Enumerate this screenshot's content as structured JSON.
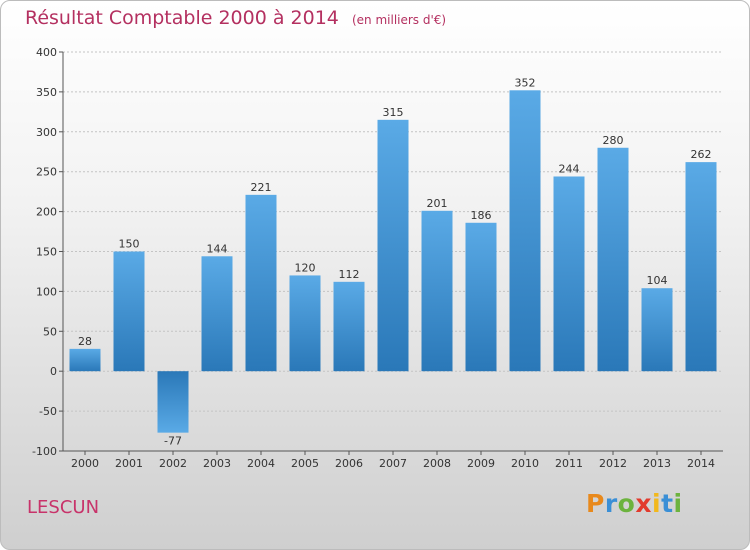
{
  "title": "Résultat Comptable 2000 à 2014",
  "subtitle": "(en milliers d'€)",
  "commune": "LESCUN",
  "logo": {
    "letters": [
      "P",
      "r",
      "o",
      "x",
      "i",
      "t",
      "i"
    ],
    "colors": [
      "#e8891c",
      "#3a8fd6",
      "#6cb33e",
      "#e23a2d",
      "#f2b81c",
      "#3a8fd6",
      "#6cb33e"
    ]
  },
  "colors": {
    "bar_top": "#5aaae6",
    "bar_bottom": "#2a78b8",
    "title": "#b43060"
  },
  "chart_data": {
    "type": "bar",
    "categories": [
      "2000",
      "2001",
      "2002",
      "2003",
      "2004",
      "2005",
      "2006",
      "2007",
      "2008",
      "2009",
      "2010",
      "2011",
      "2012",
      "2013",
      "2014"
    ],
    "values": [
      28,
      150,
      -77,
      144,
      221,
      120,
      112,
      315,
      201,
      186,
      352,
      244,
      280,
      104,
      262
    ],
    "ylim": [
      -100,
      400
    ],
    "yticks": [
      -100,
      -50,
      0,
      50,
      100,
      150,
      200,
      250,
      300,
      350,
      400
    ],
    "grid": true,
    "title": "Résultat Comptable 2000 à 2014",
    "xlabel": "",
    "ylabel": ""
  }
}
